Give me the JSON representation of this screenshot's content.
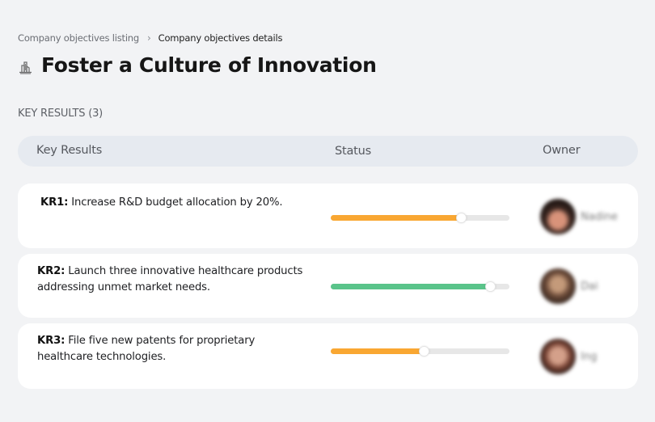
{
  "breadcrumb": {
    "items": [
      {
        "label": "Company objectives listing"
      },
      {
        "label": "Company objectives details"
      }
    ],
    "separator": "›"
  },
  "page": {
    "title": "Foster a Culture of Innovation",
    "icon": "building-chart-icon"
  },
  "key_results": {
    "section_label": "KEY RESULTS (3)",
    "count": 3,
    "columns": [
      "Key Results",
      "Status",
      "Owner"
    ],
    "rows": [
      {
        "id": "KR1:",
        "text": " Increase R&D budget allocation by 20%.",
        "progress": 73,
        "progress_color": "#f9a732",
        "owner": "Nadine"
      },
      {
        "id": "KR2:",
        "text": " Launch three innovative healthcare products addressing unmet market needs.",
        "progress": 89,
        "progress_color": "#5ac48a",
        "owner": "Dai"
      },
      {
        "id": "KR3:",
        "text": " File five new patents for proprietary healthcare technologies.",
        "progress": 52,
        "progress_color": "#f9a732",
        "owner": "Ing"
      }
    ]
  }
}
